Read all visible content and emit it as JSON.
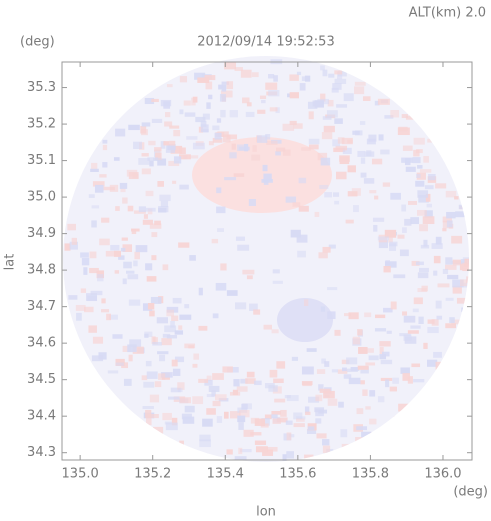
{
  "chart_data": {
    "type": "heatmap",
    "title": "2012/09/14 19:52:53",
    "subtitle": "ALT(km) 2.0",
    "x_label": "lon",
    "y_label": "lat",
    "x_unit": "(deg)",
    "y_unit": "(deg)",
    "xlim": [
      134.95,
      136.08
    ],
    "ylim": [
      34.28,
      35.37
    ],
    "xticks": [
      {
        "value": 135,
        "label": "135.0"
      },
      {
        "value": 135.2,
        "label": "135.2"
      },
      {
        "value": 135.4,
        "label": "135.4"
      },
      {
        "value": 135.6,
        "label": "135.6"
      },
      {
        "value": 135.8,
        "label": "135.8"
      },
      {
        "value": 136,
        "label": "136.0"
      }
    ],
    "yticks": [
      {
        "value": 34.3,
        "label": "34.3"
      },
      {
        "value": 34.4,
        "label": "34.4"
      },
      {
        "value": 34.5,
        "label": "34.5"
      },
      {
        "value": 34.6,
        "label": "34.6"
      },
      {
        "value": 34.7,
        "label": "34.7"
      },
      {
        "value": 34.8,
        "label": "34.8"
      },
      {
        "value": 34.9,
        "label": "34.9"
      },
      {
        "value": 35,
        "label": "35.0"
      },
      {
        "value": 35.1,
        "label": "35.1"
      },
      {
        "value": 35.2,
        "label": "35.2"
      },
      {
        "value": 35.3,
        "label": "35.3"
      }
    ]
  }
}
